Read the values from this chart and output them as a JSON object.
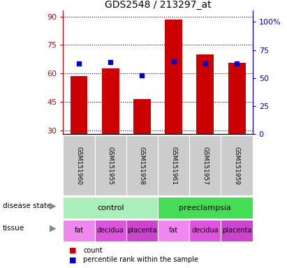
{
  "title": "GDS2548 / 213297_at",
  "samples": [
    "GSM151960",
    "GSM151955",
    "GSM151958",
    "GSM151961",
    "GSM151957",
    "GSM151959"
  ],
  "count_values": [
    58.5,
    62.5,
    46.5,
    88.5,
    70.0,
    65.5
  ],
  "percentile_values": [
    63,
    64,
    52,
    65,
    63,
    63
  ],
  "ylim_left": [
    28,
    93
  ],
  "yticks_left": [
    30,
    45,
    60,
    75,
    90
  ],
  "ylim_right": [
    0,
    110
  ],
  "yticks_right": [
    0,
    25,
    50,
    75,
    100
  ],
  "ytick_labels_right": [
    "0",
    "25",
    "50",
    "75",
    "100%"
  ],
  "bar_color": "#cc0000",
  "percentile_color": "#0000cc",
  "bar_width": 0.55,
  "disease_state_groups": [
    {
      "label": "control",
      "span": [
        0,
        3
      ],
      "color": "#aaeebb"
    },
    {
      "label": "preeclampsia",
      "span": [
        3,
        6
      ],
      "color": "#44dd55"
    }
  ],
  "tissue_groups": [
    {
      "label": "fat",
      "span": [
        0,
        1
      ],
      "color": "#ee88ee"
    },
    {
      "label": "decidua",
      "span": [
        1,
        2
      ],
      "color": "#dd55dd"
    },
    {
      "label": "placenta",
      "span": [
        2,
        3
      ],
      "color": "#cc44cc"
    },
    {
      "label": "fat",
      "span": [
        3,
        4
      ],
      "color": "#ee88ee"
    },
    {
      "label": "decidua",
      "span": [
        4,
        5
      ],
      "color": "#dd55dd"
    },
    {
      "label": "placenta",
      "span": [
        5,
        6
      ],
      "color": "#cc44cc"
    }
  ],
  "legend_items": [
    {
      "label": "count",
      "color": "#cc0000"
    },
    {
      "label": "percentile rank within the sample",
      "color": "#0000cc"
    }
  ],
  "left_axis_color": "#cc0000",
  "right_axis_color": "#0000cc",
  "gsm_bg_color": "#cccccc",
  "grid_color": "black",
  "grid_style": "dotted"
}
